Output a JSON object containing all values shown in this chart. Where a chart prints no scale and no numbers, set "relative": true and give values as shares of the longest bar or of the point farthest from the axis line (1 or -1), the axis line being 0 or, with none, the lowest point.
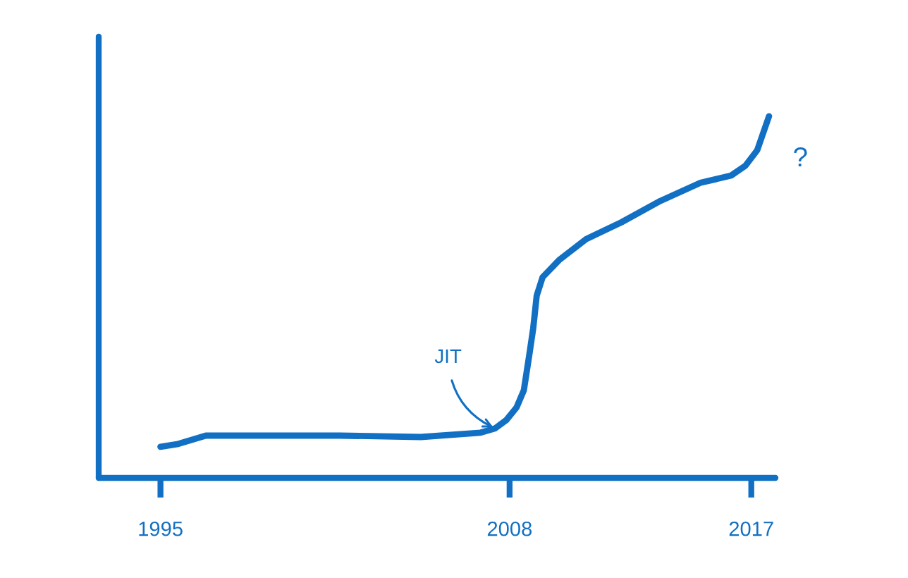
{
  "chart_data": {
    "type": "line",
    "relative": true,
    "x": [
      1995.0,
      1995.66,
      1996.69,
      1998.67,
      2001.68,
      2004.69,
      2006.92,
      2007.46,
      2007.88,
      2008.26,
      2008.53,
      2008.75,
      2008.88,
      2009.01,
      2009.23,
      2009.84,
      2010.85,
      2012.17,
      2013.62,
      2015.11,
      2016.25,
      2016.78,
      2017.22,
      2017.66
    ],
    "series": [
      {
        "color": "#1170c3",
        "values": [
          0.086,
          0.094,
          0.117,
          0.117,
          0.117,
          0.113,
          0.125,
          0.137,
          0.16,
          0.195,
          0.242,
          0.348,
          0.414,
          0.504,
          0.555,
          0.602,
          0.66,
          0.707,
          0.766,
          0.816,
          0.836,
          0.863,
          0.906,
          1.0
        ]
      }
    ],
    "xlim": [
      1992.7,
      2017.9
    ],
    "xticks": [
      1995,
      2008,
      2017
    ],
    "tick_labels": "x",
    "annotations": [
      {
        "text": "JIT",
        "x": 2007.46,
        "y": 0.137
      },
      {
        "text": "?",
        "x": 2017.66,
        "y": 1.0
      }
    ]
  }
}
